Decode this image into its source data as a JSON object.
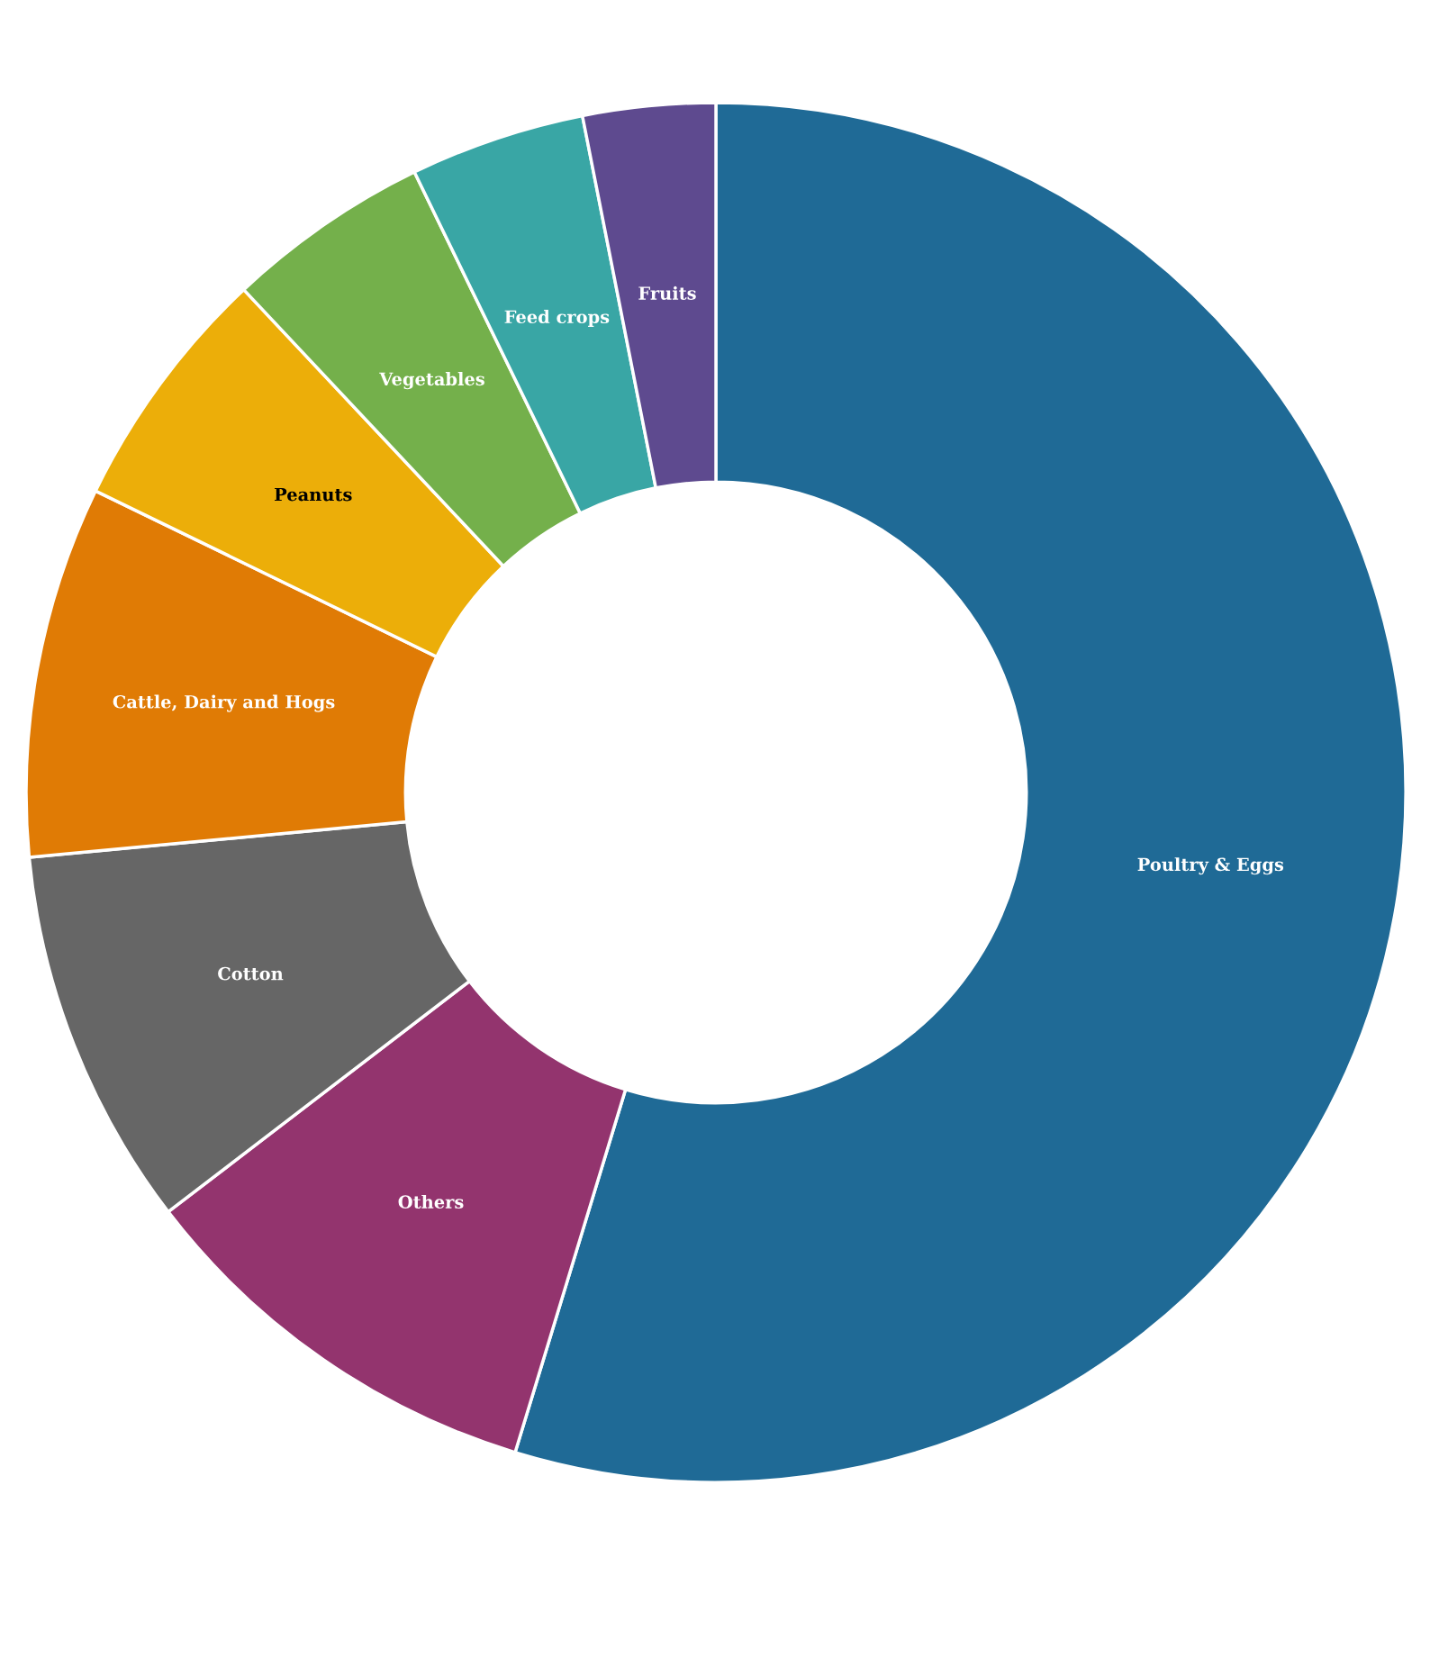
{
  "chart_data": {
    "type": "donut",
    "categories": [
      "Poultry & Eggs",
      "Others",
      "Cotton",
      "Cattle, Dairy and Hogs",
      "Peanuts",
      "Vegetables",
      "Feed crops",
      "Fruits"
    ],
    "values": [
      54.7,
      9.9,
      8.9,
      8.7,
      5.8,
      4.8,
      4.1,
      3.1
    ],
    "colors": [
      "#1f6a96",
      "#93346e",
      "#666666",
      "#e07b05",
      "#ecae09",
      "#74b04b",
      "#39a6a5",
      "#5e4a8f"
    ]
  }
}
